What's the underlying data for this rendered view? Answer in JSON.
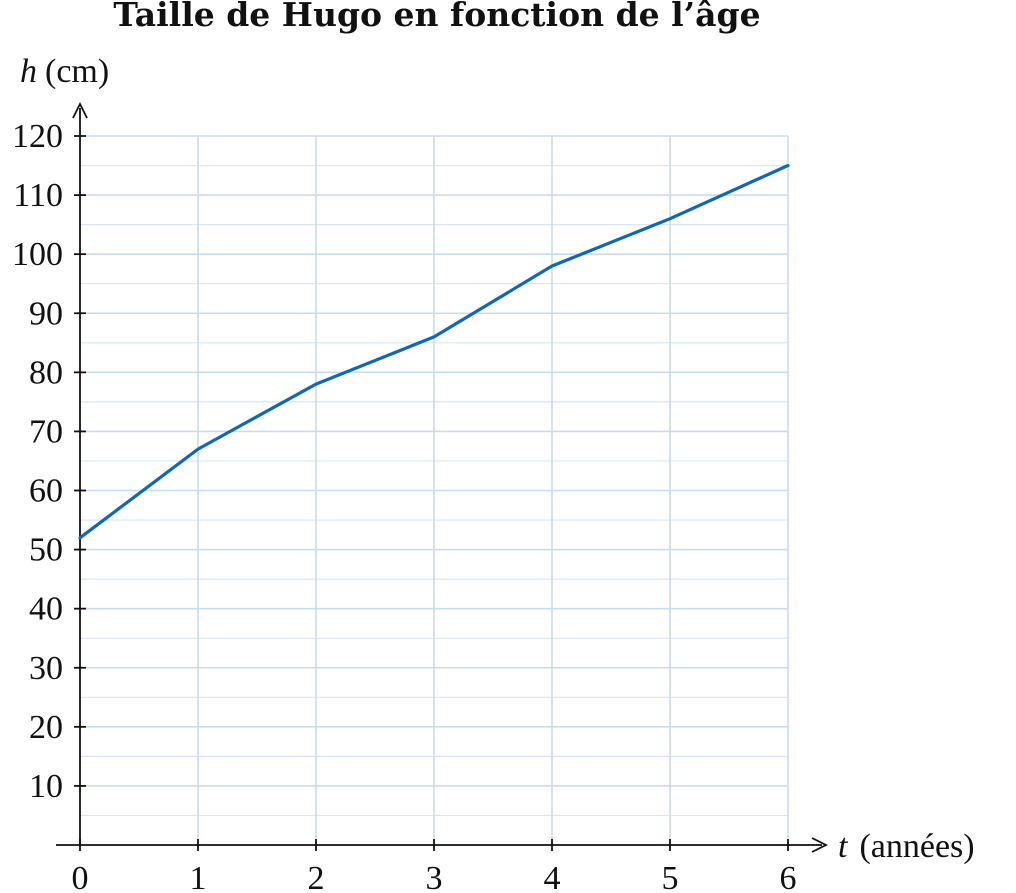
{
  "chart_data": {
    "type": "line",
    "title": "Taille de Hugo en fonction de l’âge",
    "xlabel": {
      "symbol": "t",
      "unit": "(années)"
    },
    "ylabel": {
      "symbol": "h",
      "unit": "(cm)"
    },
    "xlim": [
      0,
      6
    ],
    "ylim": [
      0,
      120
    ],
    "x_ticks": [
      0,
      1,
      2,
      3,
      4,
      5,
      6
    ],
    "y_ticks": [
      10,
      20,
      30,
      40,
      50,
      60,
      70,
      80,
      90,
      100,
      110,
      120
    ],
    "grid": true,
    "minor_y_step": 5,
    "series": [
      {
        "x": [
          0,
          1,
          2,
          3,
          4,
          5,
          6
        ],
        "values": [
          52,
          67,
          78,
          86,
          98,
          106,
          115
        ],
        "color": "#0f67b5"
      }
    ]
  }
}
